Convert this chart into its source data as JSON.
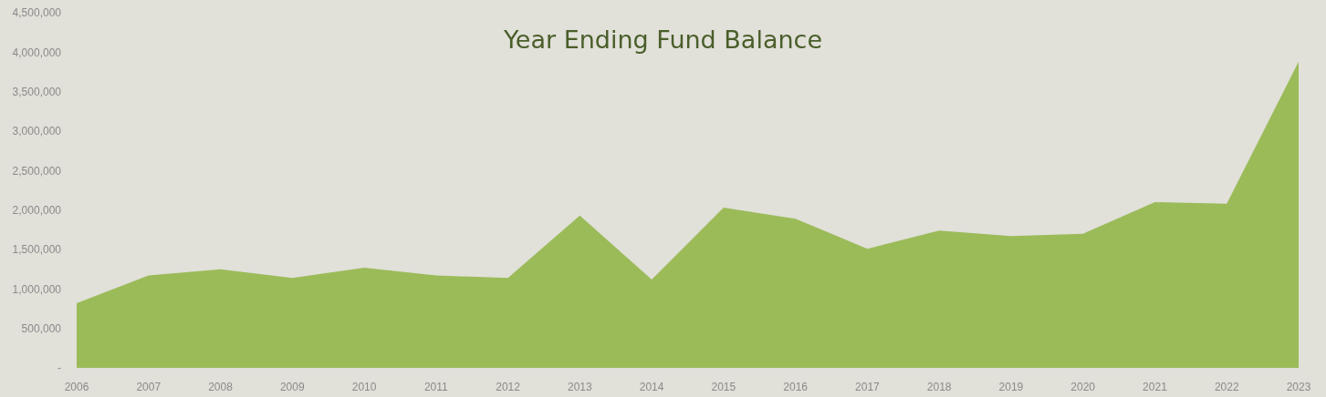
{
  "chart_data": {
    "type": "area",
    "title": "Year Ending Fund Balance",
    "categories": [
      "2006",
      "2007",
      "2008",
      "2009",
      "2010",
      "2011",
      "2012",
      "2013",
      "2014",
      "2015",
      "2016",
      "2017",
      "2018",
      "2019",
      "2020",
      "2021",
      "2022",
      "2023"
    ],
    "series": [
      {
        "color": "#9bbb59",
        "values": [
          820000,
          1170000,
          1250000,
          1140000,
          1270000,
          1170000,
          1140000,
          1930000,
          1120000,
          2030000,
          1890000,
          1510000,
          1740000,
          1670000,
          1700000,
          2100000,
          2080000,
          3880000
        ]
      }
    ],
    "ylim": [
      0,
      4500000
    ],
    "yticks": [
      {
        "value": 0,
        "label": "-"
      },
      {
        "value": 500000,
        "label": "500,000"
      },
      {
        "value": 1000000,
        "label": "1,000,000"
      },
      {
        "value": 1500000,
        "label": "1,500,000"
      },
      {
        "value": 2000000,
        "label": "2,000,000"
      },
      {
        "value": 2500000,
        "label": "2,500,000"
      },
      {
        "value": 3000000,
        "label": "3,000,000"
      },
      {
        "value": 3500000,
        "label": "3,500,000"
      },
      {
        "value": 4000000,
        "label": "4,000,000"
      },
      {
        "value": 4500000,
        "label": "4,500,000"
      }
    ],
    "grid": false
  }
}
